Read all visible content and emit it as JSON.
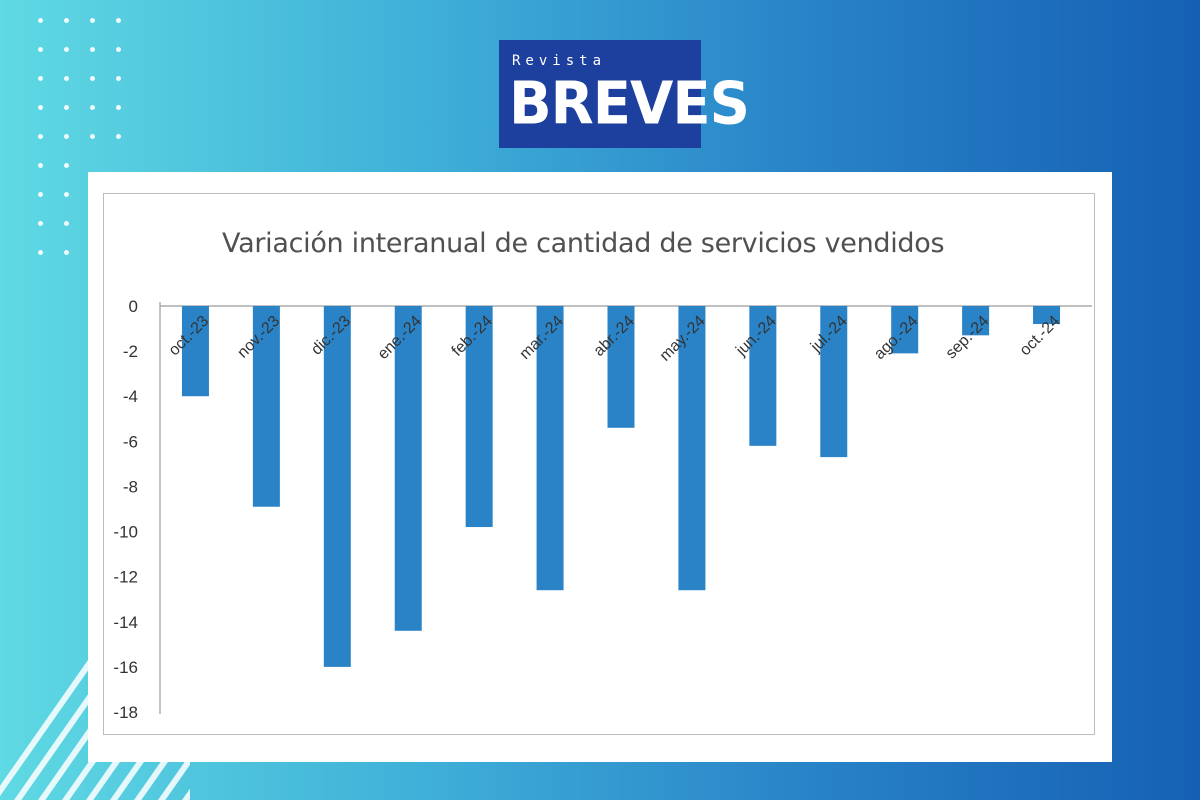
{
  "logo": {
    "small": "Revista",
    "big": "BREVES"
  },
  "colors": {
    "bar": "#2a83c6",
    "axis": "#9a9a9a",
    "tick_text": "#333333",
    "logo_bg": "#1d3f9e"
  },
  "chart_data": {
    "type": "bar",
    "title": "Variación interanual de cantidad de servicios vendidos",
    "xlabel": "",
    "ylabel": "",
    "categories": [
      "oct.-23",
      "nov.-23",
      "dic.-23",
      "ene.-24",
      "feb.-24",
      "mar.-24",
      "abr.-24",
      "may.-24",
      "jun.-24",
      "jul.-24",
      "ago.-24",
      "sep.-24",
      "oct.-24"
    ],
    "values": [
      -4.0,
      -8.9,
      -16.0,
      -14.4,
      -9.8,
      -12.6,
      -5.4,
      -12.6,
      -6.2,
      -6.7,
      -2.1,
      -1.3,
      -0.8
    ],
    "ylim": [
      -18,
      0
    ],
    "yticks": [
      0,
      -2,
      -4,
      -6,
      -8,
      -10,
      -12,
      -14,
      -16,
      -18
    ],
    "grid": false,
    "legend": "none"
  }
}
